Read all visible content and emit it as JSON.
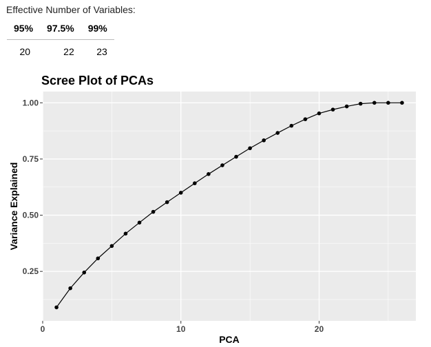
{
  "summary": {
    "caption": "Effective Number of Variables:",
    "headers": [
      "95%",
      "97.5%",
      "99%"
    ],
    "values": [
      "20",
      "22",
      "23"
    ]
  },
  "chart_data": {
    "type": "line",
    "title": "Scree Plot of PCAs",
    "xlabel": "PCA",
    "ylabel": "Variance Explained",
    "xlim": [
      0,
      27
    ],
    "ylim": [
      0.03,
      1.05
    ],
    "xticks": [
      0,
      10,
      20
    ],
    "yticks": [
      0.25,
      0.5,
      0.75,
      1.0
    ],
    "ytick_labels": [
      "0.25",
      "0.50",
      "0.75",
      "1.00"
    ],
    "grid": true,
    "series": [
      {
        "x": [
          1,
          2,
          3,
          4,
          5,
          6,
          7,
          8,
          9,
          10,
          11,
          12,
          13,
          14,
          15,
          16,
          17,
          18,
          19,
          20,
          21,
          22,
          23,
          24,
          25,
          26
        ],
        "values": [
          0.09,
          0.175,
          0.245,
          0.308,
          0.363,
          0.418,
          0.467,
          0.515,
          0.558,
          0.6,
          0.642,
          0.683,
          0.722,
          0.76,
          0.798,
          0.833,
          0.866,
          0.898,
          0.927,
          0.953,
          0.97,
          0.984,
          0.996,
          1.0,
          1.0,
          1.0
        ]
      }
    ],
    "colors": {
      "panel": "#ebebeb",
      "grid_major": "#ffffff",
      "line": "#000000"
    }
  }
}
